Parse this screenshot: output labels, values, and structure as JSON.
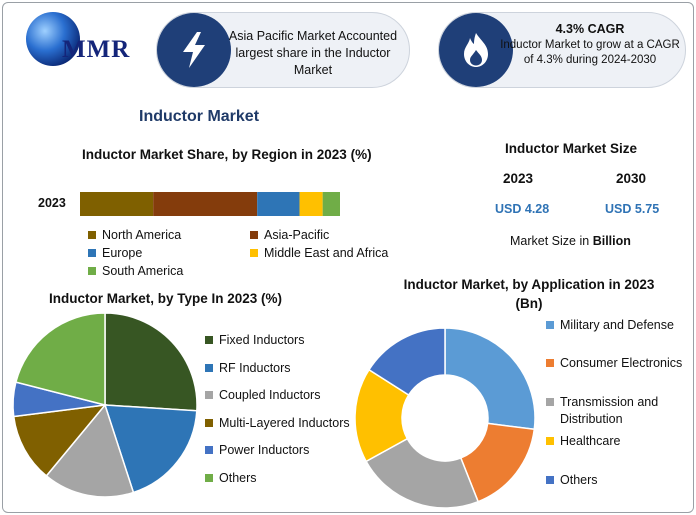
{
  "brand": {
    "logo_text": "MMR"
  },
  "callouts": [
    {
      "text": "Asia Pacific Market Accounted largest share in the Inductor Market",
      "icon": "lightning-bolt-icon"
    },
    {
      "title": "4.3% CAGR",
      "text": "Inductor Market to grow at a CAGR of 4.3% during 2024-2030",
      "icon": "flame-icon"
    }
  ],
  "main_title": "Inductor Market",
  "market_size": {
    "title": "Inductor Market Size",
    "years": [
      "2023",
      "2030"
    ],
    "values": [
      "USD 4.28",
      "USD 5.75"
    ],
    "unit_prefix": "Market Size in",
    "unit": "Billion",
    "value_color": "#2f73b5"
  },
  "colors": {
    "olive": "#7f6000",
    "brown": "#843c0c",
    "blue": "#2e75b6",
    "yellow": "#ffc000",
    "green": "#70ad47",
    "dark_green": "#375623",
    "light_blue": "#5b9bd5",
    "orange": "#ed7d31",
    "gray": "#a5a5a5",
    "navy_blue": "#4472c4",
    "dark_olive": "#806000"
  },
  "chart_data": [
    {
      "type": "bar",
      "stacked": true,
      "orientation": "horizontal",
      "title": "Inductor Market Share, by Region in 2023 (%)",
      "categories": [
        "2023"
      ],
      "series": [
        {
          "name": "North America",
          "values": [
            19
          ],
          "color": "#7f6000"
        },
        {
          "name": "Asia-Pacific",
          "values": [
            27
          ],
          "color": "#843c0c"
        },
        {
          "name": "Europe",
          "values": [
            11
          ],
          "color": "#2e75b6"
        },
        {
          "name": "Middle East and Africa",
          "values": [
            6
          ],
          "color": "#ffc000"
        },
        {
          "name": "South America",
          "values": [
            4.5
          ],
          "color": "#70ad47"
        }
      ],
      "grid": false,
      "legend": "bottom"
    },
    {
      "type": "pie",
      "title": "Inductor Market, by Type In 2023 (%)",
      "labels": [
        "Fixed Inductors",
        "RF Inductors",
        "Coupled Inductors",
        "Multi-Layered Inductors",
        "Power Inductors",
        "Others"
      ],
      "values": [
        26,
        19,
        16,
        12,
        6,
        21
      ],
      "colors": [
        "#375623",
        "#2e75b6",
        "#a5a5a5",
        "#806000",
        "#4472c4",
        "#70ad47"
      ],
      "legend": "right"
    },
    {
      "type": "pie",
      "donut": true,
      "title": "Inductor Market, by Application in 2023 (Bn)",
      "labels": [
        "Military and Defense",
        "Consumer Electronics",
        "Transmission and Distribution",
        "Healthcare",
        "Others"
      ],
      "values": [
        27,
        17,
        23,
        17,
        16
      ],
      "colors": [
        "#5b9bd5",
        "#ed7d31",
        "#a5a5a5",
        "#ffc000",
        "#4472c4"
      ],
      "legend": "right"
    }
  ]
}
